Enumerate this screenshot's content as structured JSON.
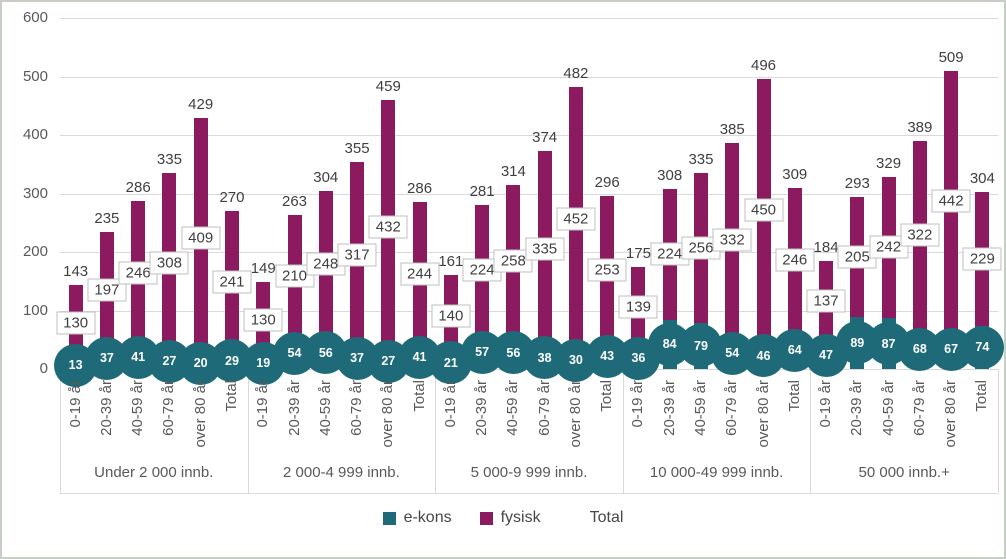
{
  "chart_data": {
    "type": "bar",
    "subtype": "stacked-columns-with-circle-markers-and-label-boxes",
    "title": "",
    "xlabel": "",
    "ylabel": "",
    "ylim": [
      0,
      600
    ],
    "yticks": [
      0,
      100,
      200,
      300,
      400,
      500,
      600
    ],
    "grid": true,
    "legend_position": "bottom",
    "categories": [
      "0-19 år",
      "20-39 år",
      "40-59 år",
      "60-79 år",
      "over 80 år",
      "Total"
    ],
    "legend": [
      {
        "label": "e-kons",
        "color": "#1e6a79",
        "marker": "square"
      },
      {
        "label": "fysisk",
        "color": "#8b1a5f",
        "marker": "square"
      },
      {
        "label": "Total",
        "color": "none",
        "marker": "none"
      }
    ],
    "groups": [
      {
        "label": "Under 2 000 innb.",
        "e_kons": [
          13,
          37,
          41,
          27,
          20,
          29
        ],
        "fysisk": [
          130,
          197,
          246,
          308,
          409,
          241
        ],
        "total": [
          143,
          235,
          286,
          335,
          429,
          270
        ]
      },
      {
        "label": "2 000-4 999 innb.",
        "e_kons": [
          19,
          54,
          56,
          37,
          27,
          41
        ],
        "fysisk": [
          130,
          210,
          248,
          317,
          432,
          244
        ],
        "total": [
          149,
          263,
          304,
          355,
          459,
          286
        ]
      },
      {
        "label": "5 000-9 999 innb.",
        "e_kons": [
          21,
          57,
          56,
          38,
          30,
          43
        ],
        "fysisk": [
          140,
          224,
          258,
          335,
          452,
          253
        ],
        "total": [
          161,
          281,
          314,
          374,
          482,
          296
        ]
      },
      {
        "label": "10 000-49 999 innb.",
        "e_kons": [
          36,
          84,
          79,
          54,
          46,
          64
        ],
        "fysisk": [
          139,
          224,
          256,
          332,
          450,
          246
        ],
        "total": [
          175,
          308,
          335,
          385,
          496,
          309
        ]
      },
      {
        "label": "50 000 innb.+",
        "e_kons": [
          47,
          89,
          87,
          68,
          67,
          74
        ],
        "fysisk": [
          137,
          205,
          242,
          322,
          442,
          229
        ],
        "total": [
          184,
          293,
          329,
          389,
          509,
          304
        ]
      }
    ],
    "colors": {
      "e_kons": "#1e6a79",
      "fysisk": "#8b1a5f",
      "gridline": "#d9d9d9",
      "value_text": "#404040",
      "axis_text": "#595959",
      "box_border": "#bfbfbf",
      "box_fill": "#ffffff",
      "circle_text": "#ffffff",
      "chart_border": "#c6cec6"
    }
  }
}
